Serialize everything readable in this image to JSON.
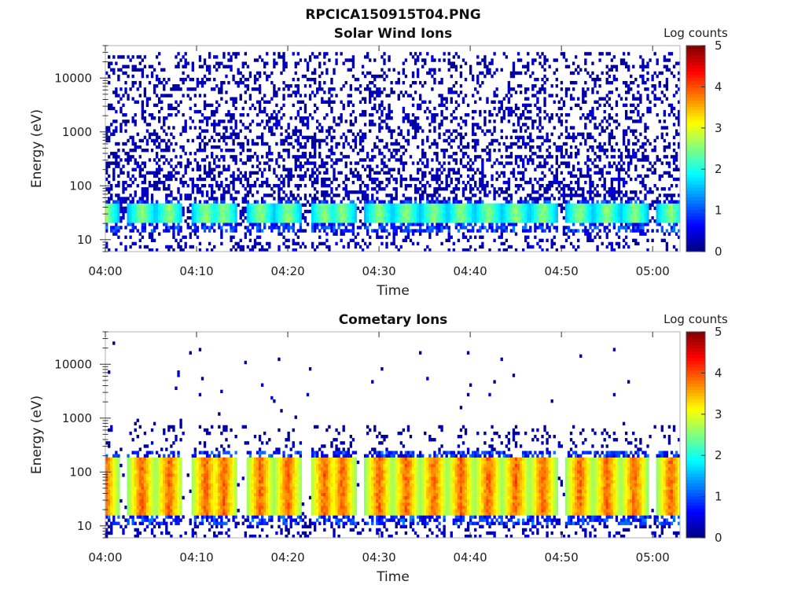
{
  "figure": {
    "title": "RPCICA150915T04.PNG"
  },
  "chart_data": [
    {
      "type": "heatmap",
      "title": "Solar Wind Ions",
      "xlabel": "Time",
      "ylabel": "Energy (eV)",
      "x_ticks": [
        "04:00",
        "04:10",
        "04:20",
        "04:30",
        "04:40",
        "04:50",
        "05:00"
      ],
      "xlim": [
        "04:00",
        "05:03"
      ],
      "y_scale": "log",
      "y_ticks": [
        10,
        100,
        1000,
        10000
      ],
      "ylim": [
        6,
        40000
      ],
      "colorbar": {
        "label": "Log counts",
        "range": [
          0,
          5
        ],
        "ticks": [
          0,
          1,
          2,
          3,
          4,
          5
        ],
        "colormap": "jet"
      },
      "band_energy_eV": [
        20,
        45
      ],
      "band_intensity_log_counts": [
        1.5,
        2.8
      ],
      "background_intensity_log_counts": [
        0,
        0.3
      ],
      "max_energy_eV": 30000
    },
    {
      "type": "heatmap",
      "title": "Cometary Ions",
      "xlabel": "Time",
      "ylabel": "Energy (eV)",
      "x_ticks": [
        "04:00",
        "04:10",
        "04:20",
        "04:30",
        "04:40",
        "04:50",
        "05:00"
      ],
      "xlim": [
        "04:00",
        "05:03"
      ],
      "y_scale": "log",
      "y_ticks": [
        10,
        100,
        1000,
        10000
      ],
      "ylim": [
        6,
        40000
      ],
      "colorbar": {
        "label": "Log counts",
        "range": [
          0,
          5
        ],
        "ticks": [
          0,
          1,
          2,
          3,
          4,
          5
        ],
        "colormap": "jet"
      },
      "band_energy_eV": [
        15,
        200
      ],
      "band_intensity_log_counts": [
        2.5,
        4.2
      ],
      "background_intensity_log_counts": [
        0,
        0.2
      ],
      "max_energy_eV": 25000
    }
  ],
  "burst_times": [
    "04:00",
    "04:04",
    "04:07",
    "04:11",
    "04:13",
    "04:17",
    "04:20",
    "04:24",
    "04:26",
    "04:30",
    "04:33",
    "04:36",
    "04:39",
    "04:42",
    "04:45",
    "04:48",
    "04:52",
    "04:55",
    "04:58",
    "05:02"
  ]
}
